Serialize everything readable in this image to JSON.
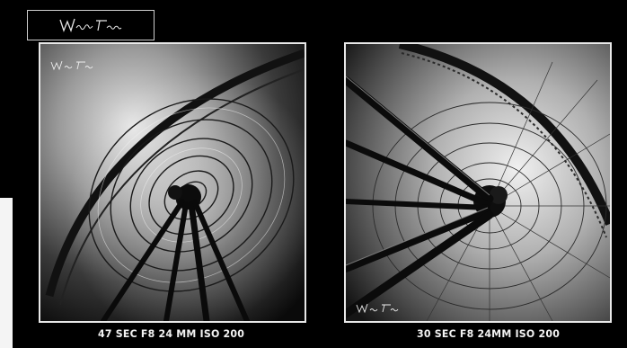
{
  "logo": {
    "icon": "signature-logo",
    "signature_text": "Wolfgang Fonfara"
  },
  "photos": [
    {
      "caption": "47 SEC  F8 24 MM  ISO 200",
      "subject": "ferris-wheel-motion-blur"
    },
    {
      "caption": "30 SEC  F8 24MM  ISO 200",
      "subject": "ferris-wheel-spokes"
    }
  ],
  "colors": {
    "background": "#000000",
    "frame": "#e8e8e8",
    "caption_text": "#f2f2f2"
  }
}
